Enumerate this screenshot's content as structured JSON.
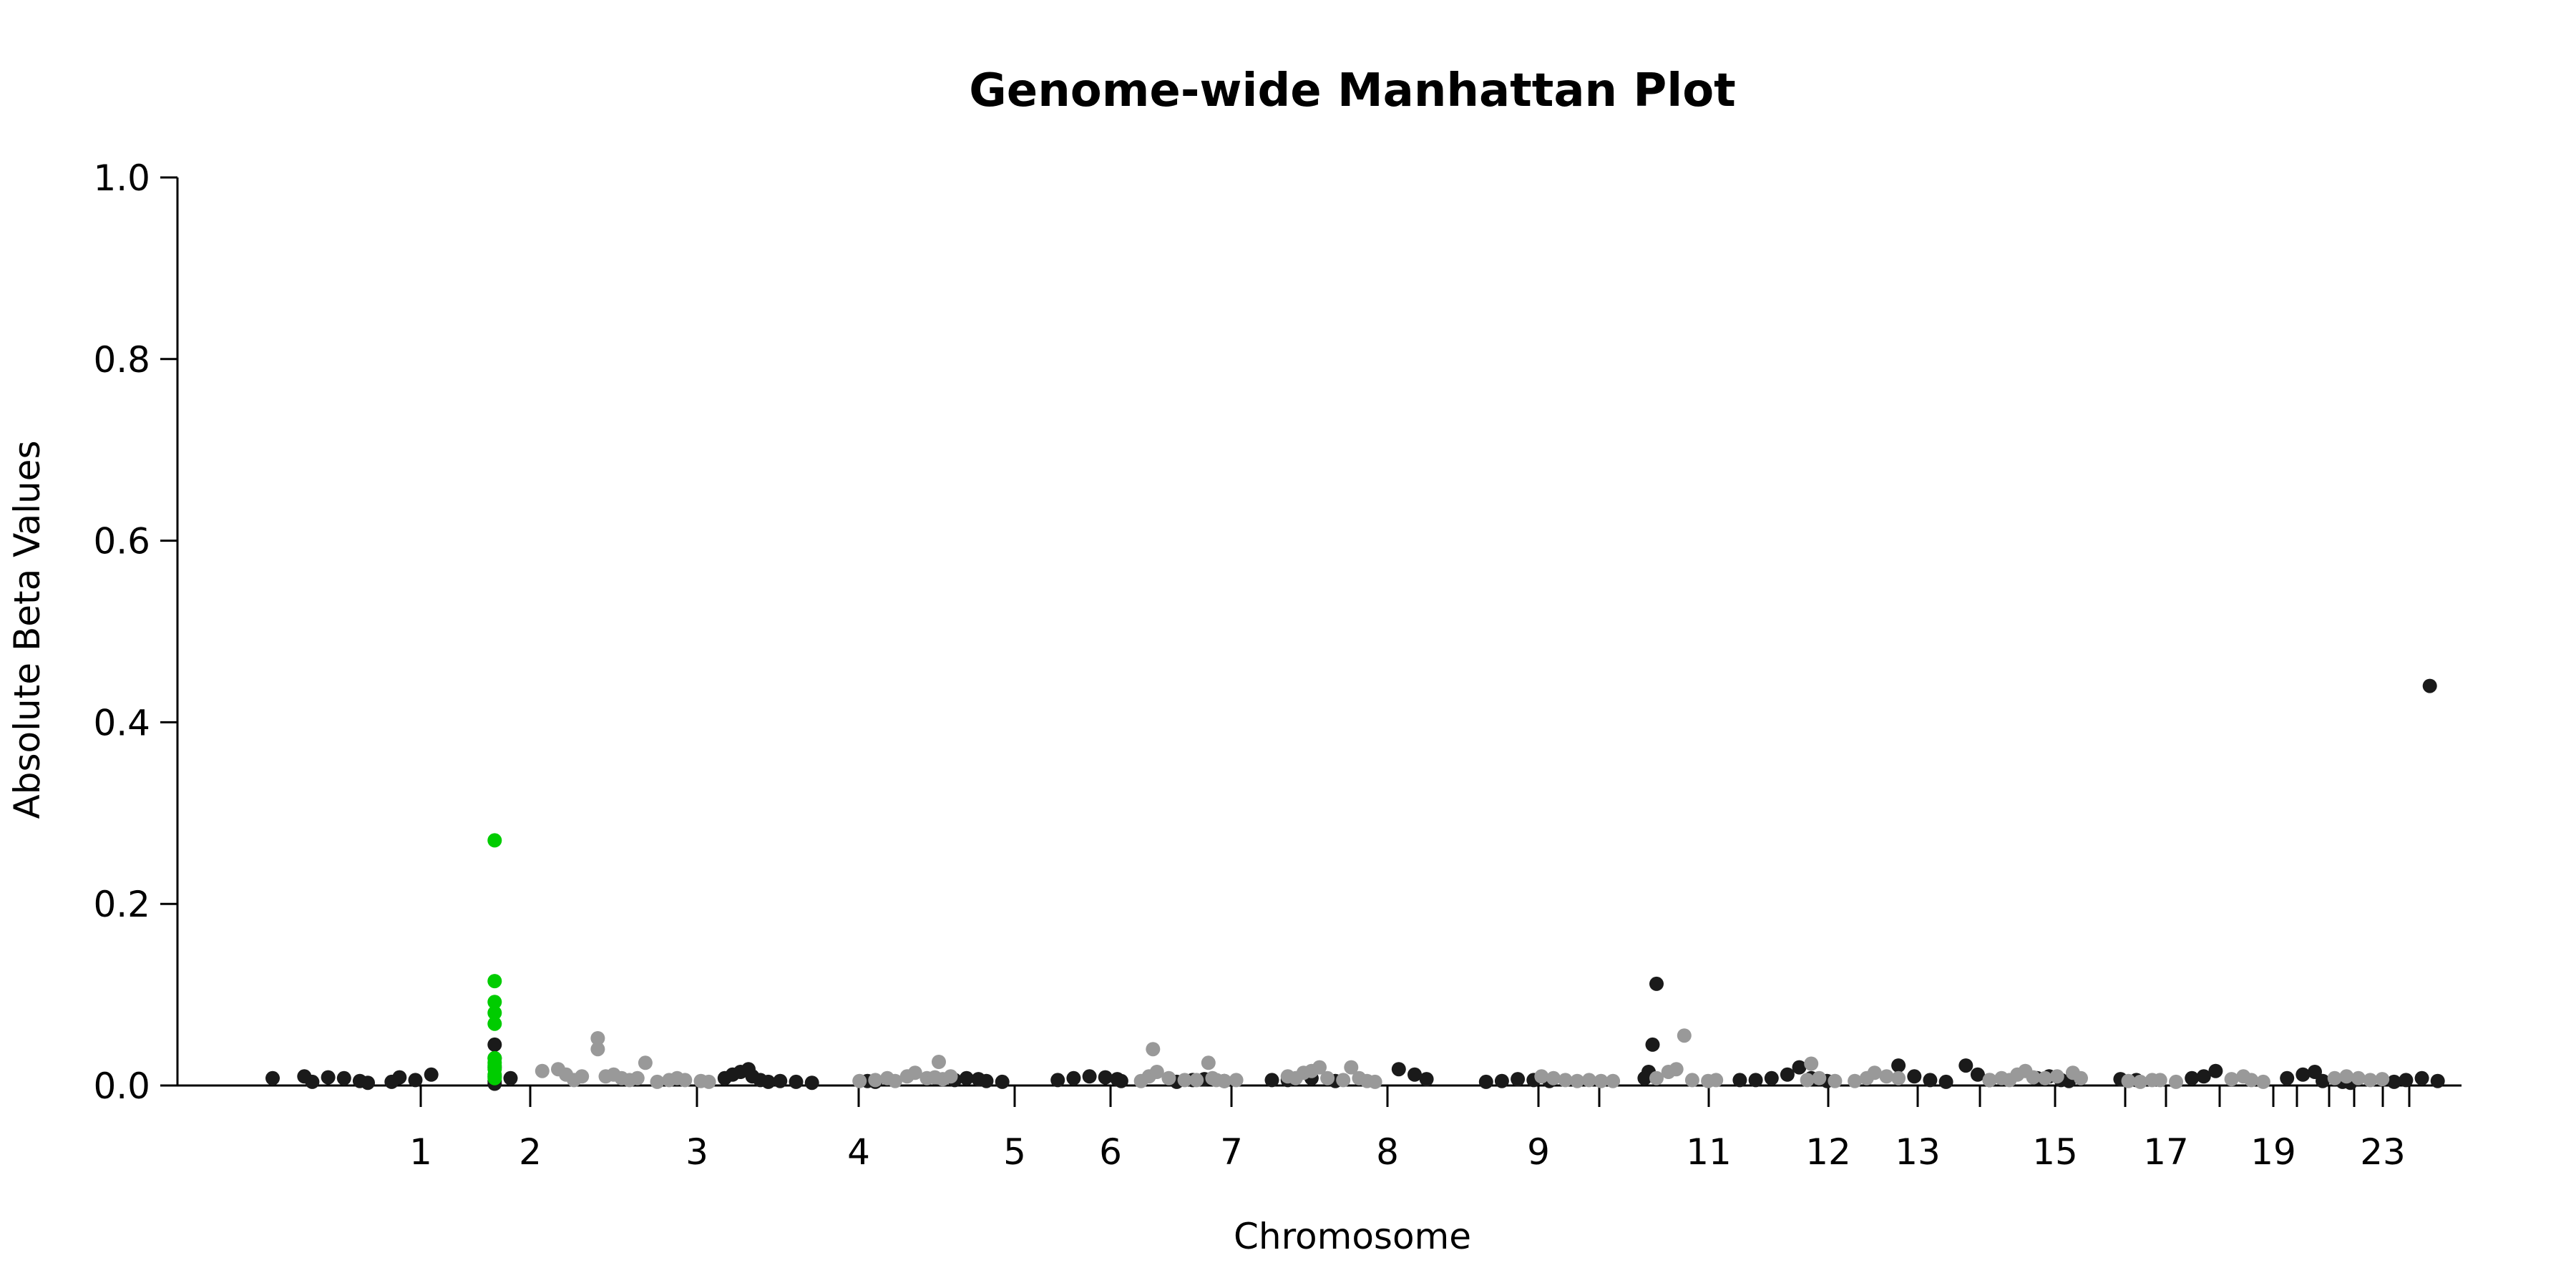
{
  "chart_data": {
    "type": "scatter",
    "title": "Genome-wide Manhattan Plot",
    "xlabel": "Chromosome",
    "ylabel": "Absolute Beta Values",
    "ylim": [
      0,
      1.0
    ],
    "yticks": [
      "0.0",
      "0.2",
      "0.4",
      "0.6",
      "0.8",
      "1.0"
    ],
    "xticks": [
      "1",
      "2",
      "3",
      "4",
      "5",
      "6",
      "7",
      "8",
      "9",
      "11",
      "12",
      "13",
      "15",
      "17",
      "19",
      "23"
    ],
    "grid": false,
    "legend": "none",
    "colors": {
      "odd": "#1a1a1a",
      "even": "#999999",
      "highlight": "#00cc00"
    },
    "series": [
      {
        "color": "#1a1a1a",
        "points": [
          [
            -1.8,
            0.008
          ],
          [
            -1.4,
            0.01
          ],
          [
            -1.3,
            0.004
          ],
          [
            -1.1,
            0.009
          ],
          [
            -0.9,
            0.008
          ],
          [
            -0.7,
            0.005
          ],
          [
            -0.6,
            0.003
          ],
          [
            -0.3,
            0.004
          ],
          [
            -0.2,
            0.009
          ],
          [
            0.0,
            0.006
          ],
          [
            0.2,
            0.012
          ],
          [
            1.0,
            0.045
          ],
          [
            1.0,
            0.03
          ],
          [
            1.0,
            0.02
          ],
          [
            1.0,
            0.01
          ],
          [
            1.0,
            0.005
          ],
          [
            1.0,
            0.002
          ],
          [
            1.2,
            0.008
          ],
          [
            3.9,
            0.008
          ],
          [
            4.0,
            0.012
          ],
          [
            4.1,
            0.015
          ],
          [
            4.2,
            0.018
          ],
          [
            4.25,
            0.01
          ],
          [
            4.35,
            0.006
          ],
          [
            4.45,
            0.004
          ],
          [
            4.6,
            0.005
          ],
          [
            4.8,
            0.004
          ],
          [
            5.0,
            0.003
          ],
          [
            5.7,
            0.005
          ],
          [
            5.8,
            0.004
          ],
          [
            6.8,
            0.006
          ],
          [
            6.95,
            0.008
          ],
          [
            7.1,
            0.007
          ],
          [
            7.2,
            0.005
          ],
          [
            7.4,
            0.004
          ],
          [
            8.1,
            0.006
          ],
          [
            8.3,
            0.008
          ],
          [
            8.5,
            0.01
          ],
          [
            8.7,
            0.009
          ],
          [
            8.85,
            0.007
          ],
          [
            8.9,
            0.005
          ],
          [
            9.6,
            0.004
          ],
          [
            9.8,
            0.006
          ],
          [
            9.95,
            0.007
          ],
          [
            10.2,
            0.005
          ],
          [
            10.8,
            0.006
          ],
          [
            11.0,
            0.006
          ],
          [
            11.3,
            0.008
          ],
          [
            11.6,
            0.005
          ],
          [
            12.4,
            0.018
          ],
          [
            12.6,
            0.012
          ],
          [
            12.75,
            0.007
          ],
          [
            13.5,
            0.004
          ],
          [
            13.7,
            0.005
          ],
          [
            13.9,
            0.007
          ],
          [
            14.1,
            0.006
          ],
          [
            14.3,
            0.005
          ],
          [
            15.65,
            0.112
          ],
          [
            15.6,
            0.045
          ],
          [
            15.55,
            0.015
          ],
          [
            15.5,
            0.008
          ],
          [
            16.7,
            0.006
          ],
          [
            16.9,
            0.006
          ],
          [
            17.1,
            0.008
          ],
          [
            17.3,
            0.012
          ],
          [
            17.45,
            0.02
          ],
          [
            17.6,
            0.008
          ],
          [
            17.8,
            0.005
          ],
          [
            18.7,
            0.022
          ],
          [
            18.9,
            0.01
          ],
          [
            19.1,
            0.006
          ],
          [
            19.3,
            0.004
          ],
          [
            19.55,
            0.022
          ],
          [
            19.7,
            0.012
          ],
          [
            19.85,
            0.006
          ],
          [
            20.45,
            0.008
          ],
          [
            20.6,
            0.01
          ],
          [
            20.75,
            0.006
          ],
          [
            20.85,
            0.005
          ],
          [
            21.5,
            0.007
          ],
          [
            21.7,
            0.006
          ],
          [
            22.4,
            0.008
          ],
          [
            22.55,
            0.01
          ],
          [
            22.7,
            0.016
          ],
          [
            23.6,
            0.008
          ],
          [
            23.8,
            0.012
          ],
          [
            23.95,
            0.015
          ],
          [
            24.05,
            0.005
          ],
          [
            24.3,
            0.004
          ],
          [
            24.4,
            0.003
          ],
          [
            24.95,
            0.004
          ],
          [
            25.1,
            0.006
          ],
          [
            25.3,
            0.008
          ],
          [
            25.4,
            0.44
          ],
          [
            25.5,
            0.005
          ]
        ]
      },
      {
        "color": "#999999",
        "points": [
          [
            1.6,
            0.016
          ],
          [
            1.8,
            0.018
          ],
          [
            1.9,
            0.012
          ],
          [
            2.1,
            0.01
          ],
          [
            2.3,
            0.052
          ],
          [
            2.3,
            0.04
          ],
          [
            2.4,
            0.01
          ],
          [
            2.5,
            0.012
          ],
          [
            2.6,
            0.008
          ],
          [
            2.7,
            0.006
          ],
          [
            2.8,
            0.008
          ],
          [
            2.9,
            0.025
          ],
          [
            2.0,
            0.006
          ],
          [
            3.05,
            0.004
          ],
          [
            3.2,
            0.006
          ],
          [
            3.3,
            0.008
          ],
          [
            3.4,
            0.006
          ],
          [
            3.6,
            0.005
          ],
          [
            3.7,
            0.004
          ],
          [
            5.6,
            0.005
          ],
          [
            5.8,
            0.006
          ],
          [
            5.95,
            0.008
          ],
          [
            6.05,
            0.005
          ],
          [
            6.2,
            0.01
          ],
          [
            6.3,
            0.014
          ],
          [
            6.45,
            0.008
          ],
          [
            6.55,
            0.009
          ],
          [
            6.65,
            0.007
          ],
          [
            6.75,
            0.01
          ],
          [
            6.6,
            0.026
          ],
          [
            9.15,
            0.005
          ],
          [
            9.25,
            0.01
          ],
          [
            9.3,
            0.04
          ],
          [
            9.35,
            0.015
          ],
          [
            9.5,
            0.008
          ],
          [
            9.7,
            0.006
          ],
          [
            9.85,
            0.006
          ],
          [
            10.0,
            0.025
          ],
          [
            10.05,
            0.008
          ],
          [
            10.1,
            0.006
          ],
          [
            10.2,
            0.005
          ],
          [
            10.35,
            0.006
          ],
          [
            11.0,
            0.01
          ],
          [
            11.1,
            0.008
          ],
          [
            11.2,
            0.014
          ],
          [
            11.3,
            0.016
          ],
          [
            11.4,
            0.02
          ],
          [
            11.5,
            0.008
          ],
          [
            11.7,
            0.006
          ],
          [
            11.8,
            0.02
          ],
          [
            11.9,
            0.008
          ],
          [
            12.0,
            0.005
          ],
          [
            12.1,
            0.004
          ],
          [
            14.2,
            0.01
          ],
          [
            14.35,
            0.008
          ],
          [
            14.5,
            0.006
          ],
          [
            14.65,
            0.005
          ],
          [
            14.8,
            0.006
          ],
          [
            14.95,
            0.005
          ],
          [
            15.1,
            0.005
          ],
          [
            15.65,
            0.008
          ],
          [
            15.8,
            0.015
          ],
          [
            15.9,
            0.018
          ],
          [
            16.0,
            0.055
          ],
          [
            16.1,
            0.006
          ],
          [
            16.3,
            0.005
          ],
          [
            16.4,
            0.006
          ],
          [
            17.55,
            0.006
          ],
          [
            17.6,
            0.024
          ],
          [
            17.7,
            0.008
          ],
          [
            17.9,
            0.005
          ],
          [
            18.15,
            0.005
          ],
          [
            18.3,
            0.008
          ],
          [
            18.4,
            0.014
          ],
          [
            18.55,
            0.01
          ],
          [
            18.7,
            0.008
          ],
          [
            19.85,
            0.006
          ],
          [
            20.0,
            0.008
          ],
          [
            20.1,
            0.006
          ],
          [
            20.2,
            0.012
          ],
          [
            20.3,
            0.016
          ],
          [
            20.4,
            0.009
          ],
          [
            20.55,
            0.008
          ],
          [
            20.7,
            0.01
          ],
          [
            20.9,
            0.014
          ],
          [
            21.0,
            0.008
          ],
          [
            21.6,
            0.005
          ],
          [
            21.75,
            0.004
          ],
          [
            21.9,
            0.006
          ],
          [
            22.0,
            0.006
          ],
          [
            22.2,
            0.004
          ],
          [
            22.9,
            0.007
          ],
          [
            23.05,
            0.01
          ],
          [
            23.15,
            0.006
          ],
          [
            23.3,
            0.004
          ],
          [
            24.2,
            0.008
          ],
          [
            24.35,
            0.01
          ],
          [
            24.5,
            0.008
          ],
          [
            24.65,
            0.006
          ],
          [
            24.8,
            0.007
          ]
        ]
      },
      {
        "color": "#00cc00",
        "points": [
          [
            1.0,
            0.27
          ],
          [
            1.0,
            0.115
          ],
          [
            1.0,
            0.092
          ],
          [
            1.0,
            0.08
          ],
          [
            1.0,
            0.068
          ],
          [
            1.0,
            0.03
          ],
          [
            1.0,
            0.025
          ],
          [
            1.0,
            0.022
          ],
          [
            1.0,
            0.018
          ],
          [
            1.0,
            0.012
          ],
          [
            1.0,
            0.008
          ]
        ]
      }
    ]
  }
}
